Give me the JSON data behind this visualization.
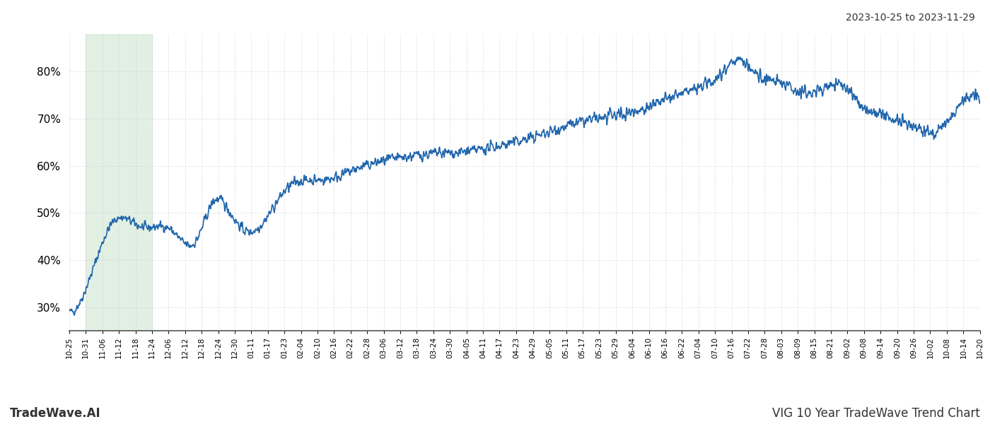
{
  "title_top_right": "2023-10-25 to 2023-11-29",
  "title_bottom_left": "TradeWave.AI",
  "title_bottom_right": "VIG 10 Year TradeWave Trend Chart",
  "line_color": "#2166ac",
  "line_width": 1.2,
  "shade_color": "#d6ead9",
  "shade_alpha": 0.7,
  "ylim": [
    25,
    88
  ],
  "yticks": [
    30,
    40,
    50,
    60,
    70,
    80
  ],
  "background_color": "#ffffff",
  "grid_color": "#cccccc",
  "x_labels": [
    "10-25",
    "10-31",
    "11-06",
    "11-12",
    "11-18",
    "11-24",
    "12-06",
    "12-12",
    "12-18",
    "12-24",
    "12-30",
    "01-11",
    "01-17",
    "01-23",
    "02-04",
    "02-10",
    "02-16",
    "02-22",
    "02-28",
    "03-06",
    "03-12",
    "03-18",
    "03-24",
    "03-30",
    "04-05",
    "04-11",
    "04-17",
    "04-23",
    "04-29",
    "05-05",
    "05-11",
    "05-17",
    "05-23",
    "05-29",
    "06-04",
    "06-10",
    "06-16",
    "06-22",
    "07-04",
    "07-10",
    "07-16",
    "07-22",
    "07-28",
    "08-03",
    "08-09",
    "08-15",
    "08-21",
    "09-02",
    "09-08",
    "09-14",
    "09-20",
    "09-26",
    "10-02",
    "10-08",
    "10-14",
    "10-20"
  ],
  "shade_label_start": "10-31",
  "shade_label_end": "11-24",
  "n_points": 2520
}
